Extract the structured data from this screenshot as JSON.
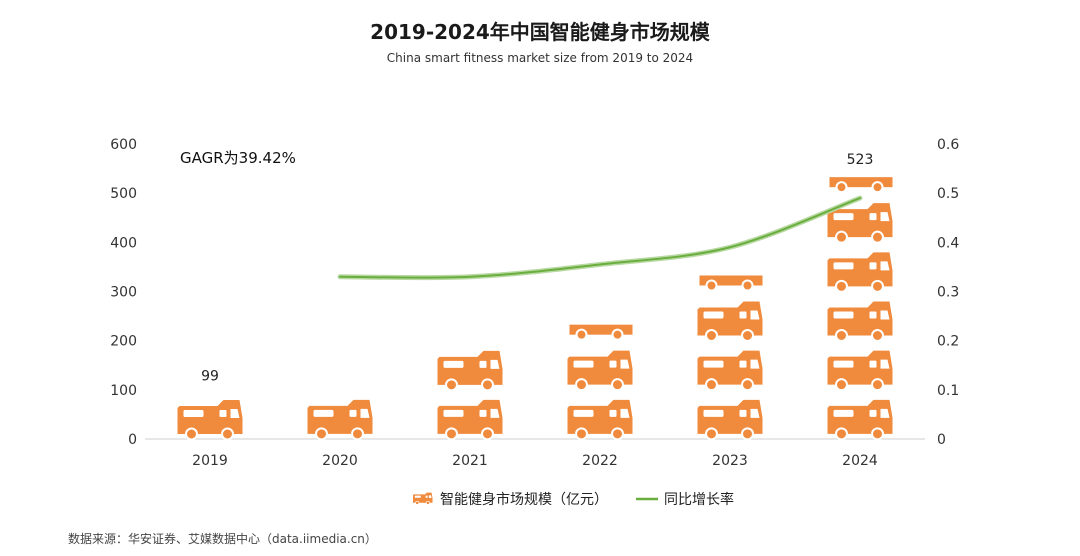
{
  "title": "2019-2024年中国智能健身市场规模",
  "subtitle": "China smart fitness market  size  from 2019 to 2024",
  "source": "数据来源：华安证券、艾媒数据中心（data.iimedia.cn）",
  "chart_data": {
    "type": "bar",
    "categories": [
      "2019",
      "2020",
      "2021",
      "2022",
      "2023",
      "2024"
    ],
    "series": [
      {
        "name": "智能健身市场规模（亿元）",
        "type": "bar",
        "axis": "left",
        "color": "#F08A3C",
        "icon": "rv-camper-icon",
        "values": [
          99,
          100,
          190,
          240,
          330,
          523
        ]
      },
      {
        "name": "同比增长率",
        "type": "line",
        "axis": "right",
        "color": "#6AAE3E",
        "values": [
          null,
          0.33,
          0.33,
          0.355,
          0.39,
          0.49
        ]
      }
    ],
    "data_labels": [
      {
        "category": "2019",
        "text": "99"
      },
      {
        "category": "2024",
        "text": "523"
      }
    ],
    "annotation": "GAGR为39.42%",
    "y_left": {
      "ylim": [
        0,
        600
      ],
      "ticks": [
        "0",
        "100",
        "200",
        "300",
        "400",
        "500",
        "600"
      ]
    },
    "y_right": {
      "ylim": [
        0,
        0.6
      ],
      "ticks": [
        "0",
        "0.1",
        "0.2",
        "0.3",
        "0.4",
        "0.5",
        "0.6"
      ]
    },
    "grid": false,
    "legend_position": "bottom-center"
  }
}
